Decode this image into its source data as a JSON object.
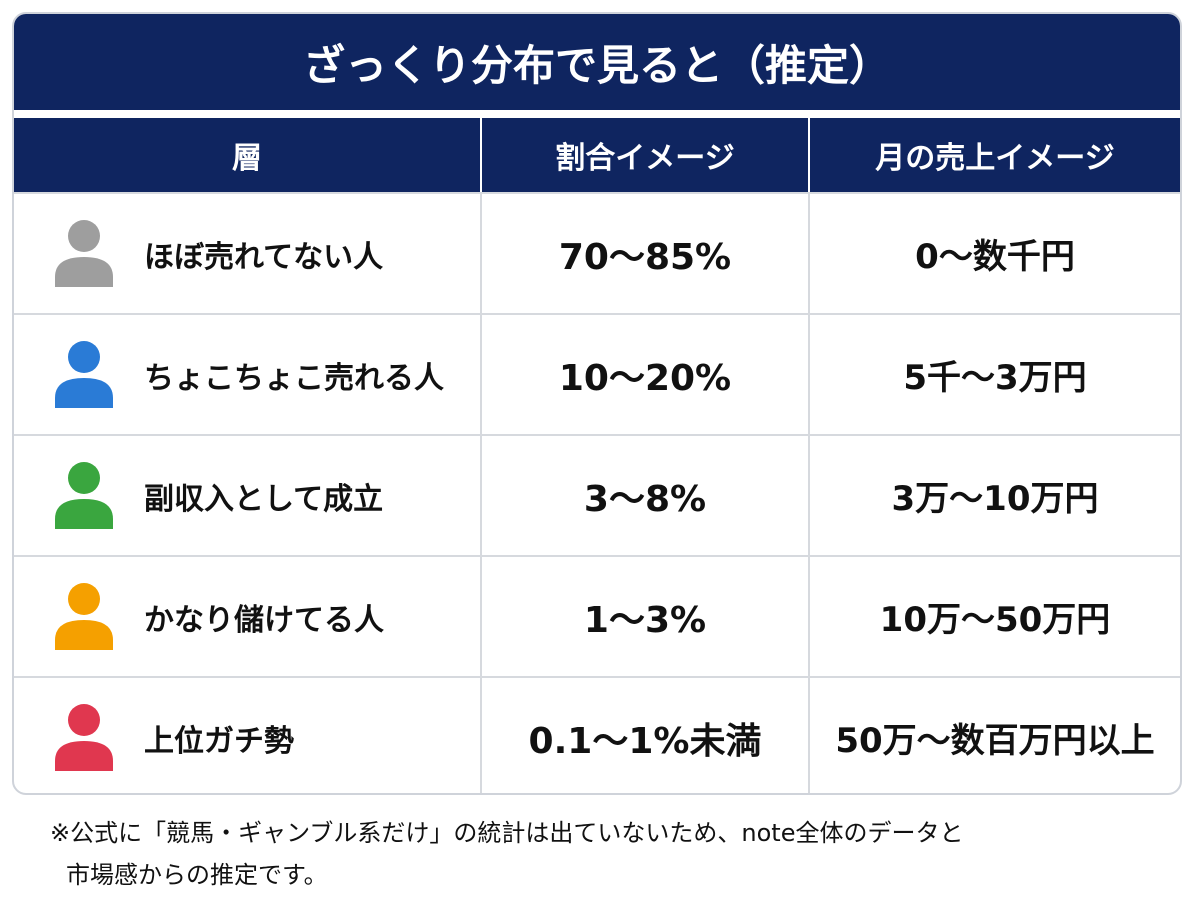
{
  "header": {
    "title": "ざっくり分布で見ると（推定）"
  },
  "table": {
    "headers": [
      "層",
      "割合イメージ",
      "月の売上イメージ"
    ],
    "rows": [
      [
        "ほぼ売れてない人",
        "70～85%",
        "0～数千円"
      ],
      [
        "ちょこちょこ売れる人",
        "10～20%",
        "5千～3万円"
      ],
      [
        "副収入として成立",
        "3～8%",
        "3万～10万円"
      ],
      [
        "かなり儲けてる人",
        "1～3%",
        "10万～50万円"
      ],
      [
        "上位ガチ勢",
        "0.1～1%未満",
        "50万～数百万円以上"
      ]
    ]
  },
  "footnote": {
    "lines": [
      "※公式に「競馬・ギャンブル系だけ」の統計は出ていないため、note全体のデータと",
      "市場感からの推定です。"
    ]
  }
}
